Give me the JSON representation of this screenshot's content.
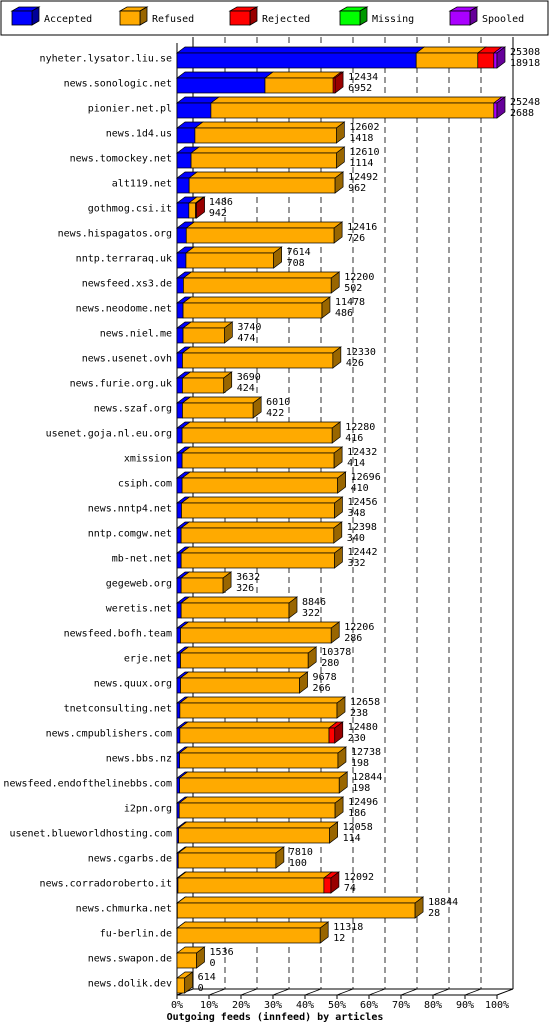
{
  "chart_data": {
    "type": "bar",
    "orientation": "horizontal",
    "stacked": true,
    "xlabel": "Outgoing feeds (innfeed) by articles",
    "xlim": [
      0,
      100
    ],
    "x_ticks": [
      "0%",
      "10%",
      "20%",
      "30%",
      "40%",
      "50%",
      "60%",
      "70%",
      "80%",
      "90%",
      "100%"
    ],
    "legend": {
      "placement": "top",
      "entries": [
        {
          "name": "Accepted",
          "color": "#0000ff"
        },
        {
          "name": "Refused",
          "color": "#ffaa00"
        },
        {
          "name": "Rejected",
          "color": "#ff0000"
        },
        {
          "name": "Missing",
          "color": "#00ff00"
        },
        {
          "name": "Spooled",
          "color": "#aa00ff"
        }
      ]
    },
    "rows": [
      {
        "host": "nyheter.lysator.liu.se",
        "total": "25308",
        "accepted": "18918",
        "pct": [
          74.75,
          19.25,
          5.0,
          0,
          1.0
        ]
      },
      {
        "host": "news.sonologic.net",
        "total": "12434",
        "accepted": "6952",
        "pct": [
          27.5,
          21.3,
          0.6,
          0,
          0
        ]
      },
      {
        "host": "pionier.net.pl",
        "total": "25248",
        "accepted": "2688",
        "pct": [
          10.6,
          88.4,
          0,
          0,
          1.0
        ]
      },
      {
        "host": "news.1d4.us",
        "total": "12602",
        "accepted": "1418",
        "pct": [
          5.6,
          44.2,
          0,
          0,
          0
        ]
      },
      {
        "host": "news.tomockey.net",
        "total": "12610",
        "accepted": "1114",
        "pct": [
          4.4,
          45.4,
          0,
          0,
          0
        ]
      },
      {
        "host": "alt119.net",
        "total": "12492",
        "accepted": "962",
        "pct": [
          3.8,
          45.6,
          0,
          0,
          0
        ]
      },
      {
        "host": "gothmog.csi.it",
        "total": "1486",
        "accepted": "942",
        "pct": [
          3.7,
          2.1,
          0.1,
          0,
          0
        ]
      },
      {
        "host": "news.hispagatos.org",
        "total": "12416",
        "accepted": "726",
        "pct": [
          2.9,
          46.2,
          0,
          0,
          0
        ]
      },
      {
        "host": "nntp.terraraq.uk",
        "total": "7614",
        "accepted": "708",
        "pct": [
          2.8,
          27.4,
          0,
          0,
          0
        ]
      },
      {
        "host": "newsfeed.xs3.de",
        "total": "12200",
        "accepted": "502",
        "pct": [
          2.0,
          46.2,
          0,
          0,
          0
        ]
      },
      {
        "host": "news.neodome.net",
        "total": "11478",
        "accepted": "486",
        "pct": [
          1.9,
          43.4,
          0,
          0,
          0
        ]
      },
      {
        "host": "news.niel.me",
        "total": "3740",
        "accepted": "474",
        "pct": [
          1.9,
          12.9,
          0,
          0,
          0
        ]
      },
      {
        "host": "news.usenet.ovh",
        "total": "12330",
        "accepted": "426",
        "pct": [
          1.7,
          47.0,
          0,
          0,
          0
        ]
      },
      {
        "host": "news.furie.org.uk",
        "total": "3690",
        "accepted": "424",
        "pct": [
          1.7,
          12.9,
          0,
          0,
          0
        ]
      },
      {
        "host": "news.szaf.org",
        "total": "6010",
        "accepted": "422",
        "pct": [
          1.7,
          22.1,
          0,
          0,
          0
        ]
      },
      {
        "host": "usenet.goja.nl.eu.org",
        "total": "12280",
        "accepted": "416",
        "pct": [
          1.6,
          46.9,
          0,
          0,
          0
        ]
      },
      {
        "host": "xmission",
        "total": "12432",
        "accepted": "414",
        "pct": [
          1.6,
          47.5,
          0,
          0,
          0
        ]
      },
      {
        "host": "csiph.com",
        "total": "12696",
        "accepted": "410",
        "pct": [
          1.6,
          48.6,
          0,
          0,
          0
        ]
      },
      {
        "host": "news.nntp4.net",
        "total": "12456",
        "accepted": "348",
        "pct": [
          1.4,
          47.8,
          0,
          0,
          0
        ]
      },
      {
        "host": "nntp.comgw.net",
        "total": "12398",
        "accepted": "340",
        "pct": [
          1.3,
          47.7,
          0,
          0,
          0
        ]
      },
      {
        "host": "mb-net.net",
        "total": "12442",
        "accepted": "332",
        "pct": [
          1.3,
          47.9,
          0,
          0,
          0
        ]
      },
      {
        "host": "gegeweb.org",
        "total": "3632",
        "accepted": "326",
        "pct": [
          1.3,
          13.1,
          0,
          0,
          0
        ]
      },
      {
        "host": "weretis.net",
        "total": "8846",
        "accepted": "322",
        "pct": [
          1.3,
          33.7,
          0,
          0,
          0
        ]
      },
      {
        "host": "newsfeed.bofh.team",
        "total": "12206",
        "accepted": "286",
        "pct": [
          1.1,
          47.1,
          0,
          0,
          0
        ]
      },
      {
        "host": "erje.net",
        "total": "10378",
        "accepted": "280",
        "pct": [
          1.1,
          39.9,
          0,
          0,
          0
        ]
      },
      {
        "host": "news.quux.org",
        "total": "9678",
        "accepted": "266",
        "pct": [
          1.1,
          37.2,
          0,
          0,
          0
        ]
      },
      {
        "host": "tnetconsulting.net",
        "total": "12658",
        "accepted": "238",
        "pct": [
          0.9,
          49.1,
          0,
          0,
          0
        ]
      },
      {
        "host": "news.cmpublishers.com",
        "total": "12480",
        "accepted": "230",
        "pct": [
          0.9,
          46.6,
          1.8,
          0,
          0
        ]
      },
      {
        "host": "news.bbs.nz",
        "total": "12738",
        "accepted": "198",
        "pct": [
          0.8,
          49.5,
          0,
          0,
          0
        ]
      },
      {
        "host": "newsfeed.endofthelinebbs.com",
        "total": "12844",
        "accepted": "198",
        "pct": [
          0.8,
          49.9,
          0,
          0,
          0
        ]
      },
      {
        "host": "i2pn.org",
        "total": "12496",
        "accepted": "186",
        "pct": [
          0.7,
          48.7,
          0,
          0,
          0
        ]
      },
      {
        "host": "usenet.blueworldhosting.com",
        "total": "12058",
        "accepted": "114",
        "pct": [
          0.5,
          47.2,
          0,
          0,
          0
        ]
      },
      {
        "host": "news.cgarbs.de",
        "total": "7810",
        "accepted": "100",
        "pct": [
          0.4,
          30.5,
          0,
          0,
          0
        ]
      },
      {
        "host": "news.corradoroberto.it",
        "total": "12092",
        "accepted": "74",
        "pct": [
          0.3,
          45.6,
          2.2,
          0,
          0
        ]
      },
      {
        "host": "news.chmurka.net",
        "total": "18844",
        "accepted": "28",
        "pct": [
          0.1,
          74.3,
          0,
          0,
          0
        ]
      },
      {
        "host": "fu-berlin.de",
        "total": "11318",
        "accepted": "12",
        "pct": [
          0.05,
          44.7,
          0,
          0,
          0
        ]
      },
      {
        "host": "news.swapon.de",
        "total": "1536",
        "accepted": "0",
        "pct": [
          0,
          6.1,
          0,
          0,
          0
        ]
      },
      {
        "host": "news.dolik.dev",
        "total": "614",
        "accepted": "0",
        "pct": [
          0,
          2.4,
          0,
          0,
          0
        ]
      }
    ]
  }
}
